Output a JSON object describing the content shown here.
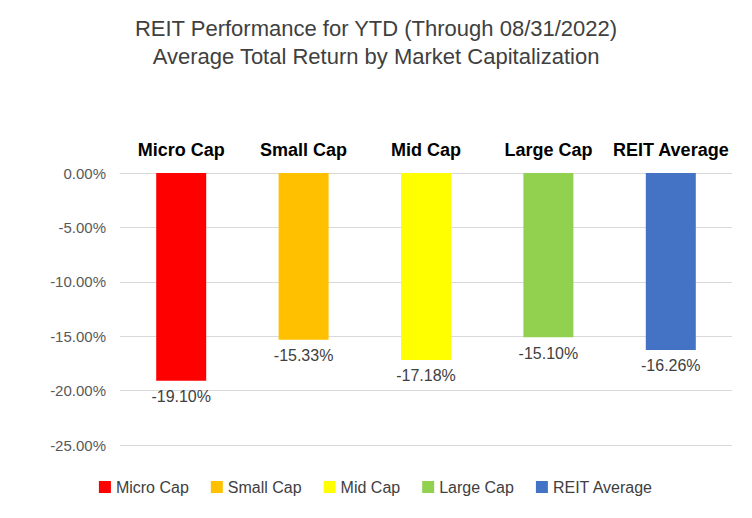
{
  "chart_data": {
    "type": "bar",
    "title": "REIT Performance for YTD (Through 08/31/2022)",
    "subtitle": "Average Total Return by Market Capitalization",
    "categories": [
      "Micro Cap",
      "Small Cap",
      "Mid Cap",
      "Large Cap",
      "REIT Average"
    ],
    "values": [
      -19.1,
      -15.33,
      -17.18,
      -15.1,
      -16.26
    ],
    "value_labels": [
      "-19.10%",
      "-15.33%",
      "-17.18%",
      "-15.10%",
      "-16.26%"
    ],
    "colors": [
      "#ff0000",
      "#ffc000",
      "#ffff00",
      "#92d050",
      "#4472c4"
    ],
    "ylim": [
      -25,
      0
    ],
    "yticks": [
      {
        "value": -25,
        "label": "-25.00%"
      },
      {
        "value": -20,
        "label": "-20.00%"
      },
      {
        "value": -15,
        "label": "-15.00%"
      },
      {
        "value": -10,
        "label": "-10.00%"
      },
      {
        "value": -5,
        "label": "-5.00%"
      },
      {
        "value": 0,
        "label": "0.00%"
      }
    ],
    "grid": true,
    "legend": "bottom",
    "data_labels": true
  }
}
